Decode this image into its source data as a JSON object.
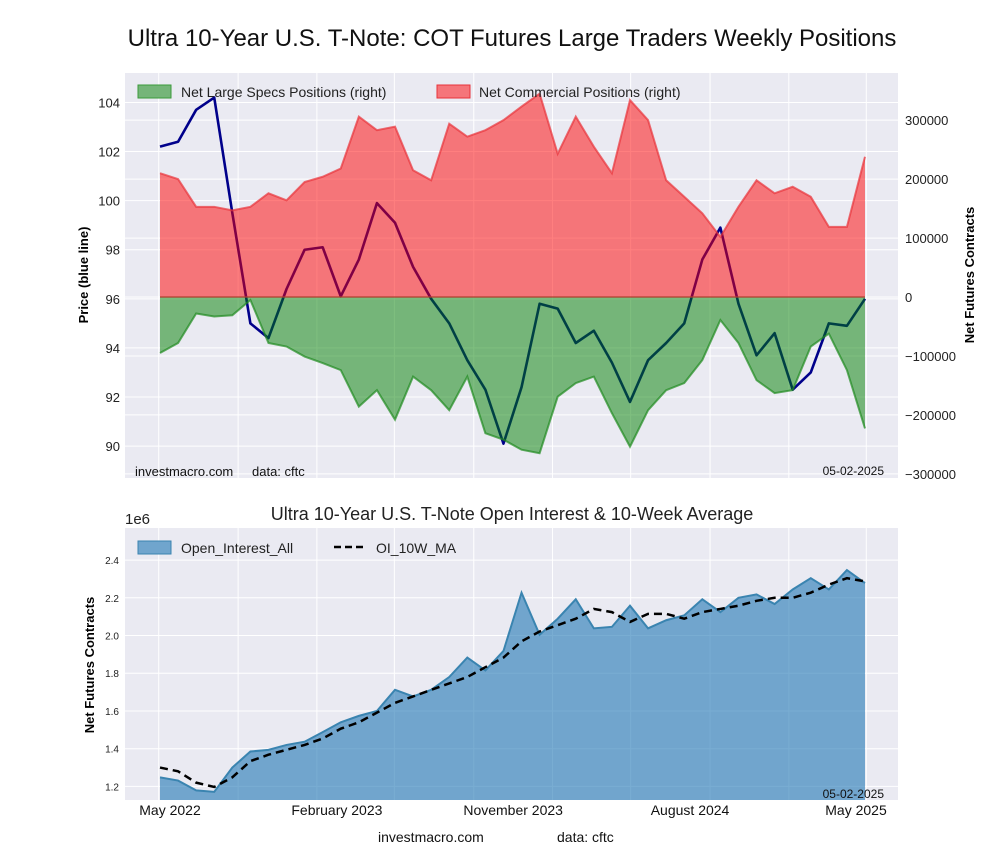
{
  "title": "Ultra 10-Year U.S. T-Note: COT Futures Large Traders Weekly Positions",
  "footer": {
    "site": "investmacro.com",
    "source": "data: cftc"
  },
  "chart_data": [
    {
      "type": "area+line",
      "title": "",
      "ylabel_left": "Price (blue line)",
      "ylabel_right": "Net Futures Contracts",
      "ylim_left": [
        88.7,
        105.2
      ],
      "ylim_right": [
        -307000,
        380000
      ],
      "yticks_left": [
        "104",
        "102",
        "100",
        "98",
        "96",
        "94",
        "92",
        "90"
      ],
      "yticks_right": [
        "300000",
        "200000",
        "100000",
        "0",
        "−100000",
        "−200000",
        "−300000"
      ],
      "grid": true,
      "legend_placement": "top-left",
      "watermark": "investmacro.com",
      "source_note": "data: cftc",
      "date_stamp": "05-02-2025",
      "x": [
        "2022-05-03",
        "2022-05-31",
        "2022-06-28",
        "2022-07-26",
        "2022-08-23",
        "2022-09-20",
        "2022-10-18",
        "2022-11-15",
        "2022-12-13",
        "2023-01-10",
        "2023-02-07",
        "2023-03-07",
        "2023-04-04",
        "2023-05-02",
        "2023-05-30",
        "2023-06-27",
        "2023-07-25",
        "2023-08-22",
        "2023-09-19",
        "2023-10-17",
        "2023-11-14",
        "2023-12-12",
        "2024-01-09",
        "2024-02-06",
        "2024-03-05",
        "2024-04-02",
        "2024-04-30",
        "2024-05-28",
        "2024-06-25",
        "2024-07-23",
        "2024-08-20",
        "2024-09-17",
        "2024-10-15",
        "2024-11-12",
        "2024-12-10",
        "2025-01-07",
        "2025-02-04",
        "2025-03-04",
        "2025-04-01",
        "2025-04-29"
      ],
      "series": [
        {
          "name": "Net Large Specs Positions (right)",
          "axis": "right",
          "kind": "area",
          "color": "#008000",
          "values": [
            -95000,
            -78000,
            -28000,
            -33000,
            -31000,
            -5000,
            -78000,
            -84000,
            -101000,
            -112000,
            -124000,
            -186000,
            -158000,
            -208000,
            -135000,
            -158000,
            -192000,
            -135000,
            -231000,
            -242000,
            -259000,
            -265000,
            -169000,
            -146000,
            -135000,
            -197000,
            -254000,
            -192000,
            -158000,
            -146000,
            -107000,
            -39000,
            -78000,
            -141000,
            -163000,
            -158000,
            -84000,
            -62000,
            -124000,
            -223000
          ]
        },
        {
          "name": "Net Commercial Positions (right)",
          "axis": "right",
          "kind": "area",
          "color": "#ff0000",
          "values": [
            210000,
            200000,
            153000,
            153000,
            147000,
            153000,
            176000,
            164000,
            195000,
            204000,
            218000,
            306000,
            283000,
            289000,
            215000,
            198000,
            294000,
            272000,
            283000,
            300000,
            323000,
            345000,
            243000,
            306000,
            255000,
            210000,
            334000,
            300000,
            198000,
            170000,
            142000,
            102000,
            153000,
            198000,
            176000,
            187000,
            170000,
            119000,
            119000,
            238000
          ]
        },
        {
          "axis": "left",
          "kind": "line",
          "color": "#00008b",
          "values": [
            102.2,
            102.4,
            103.7,
            104.2,
            99.5,
            95.0,
            94.4,
            96.4,
            98.0,
            98.1,
            96.1,
            97.6,
            99.9,
            99.1,
            97.3,
            96.0,
            95.0,
            93.5,
            92.3,
            90.1,
            92.4,
            95.8,
            95.6,
            94.2,
            94.7,
            93.4,
            91.8,
            93.5,
            94.2,
            95.0,
            97.6,
            98.9,
            95.8,
            93.7,
            94.6,
            92.3,
            93.0,
            95.0,
            94.9,
            96.0
          ]
        }
      ]
    },
    {
      "type": "area+line",
      "title": "Ultra 10-Year U.S. T-Note Open Interest & 10-Week Average",
      "ylabel": "Net Futures Contracts",
      "y_scale_note": "1e6",
      "ylim": [
        1.128,
        2.57
      ],
      "yticks": [
        "2.4",
        "2.2",
        "2.0",
        "1.8",
        "1.6",
        "1.4",
        "1.2"
      ],
      "xticks": [
        "May 2022",
        "February 2023",
        "November 2023",
        "August 2024",
        "May 2025"
      ],
      "xtick_dates": [
        "2022-05-01",
        "2023-02-01",
        "2023-11-01",
        "2024-08-01",
        "2025-05-01"
      ],
      "grid": true,
      "legend_placement": "top-left",
      "date_stamp": "05-02-2025",
      "x": [
        "2022-05-03",
        "2022-05-31",
        "2022-06-28",
        "2022-07-26",
        "2022-08-23",
        "2022-09-20",
        "2022-10-18",
        "2022-11-15",
        "2022-12-13",
        "2023-01-10",
        "2023-02-07",
        "2023-03-07",
        "2023-04-04",
        "2023-05-02",
        "2023-05-30",
        "2023-06-27",
        "2023-07-25",
        "2023-08-22",
        "2023-09-19",
        "2023-10-17",
        "2023-11-14",
        "2023-12-12",
        "2024-01-09",
        "2024-02-06",
        "2024-03-05",
        "2024-04-02",
        "2024-04-30",
        "2024-05-28",
        "2024-06-25",
        "2024-07-23",
        "2024-08-20",
        "2024-09-17",
        "2024-10-15",
        "2024-11-12",
        "2024-12-10",
        "2025-01-07",
        "2025-02-04",
        "2025-03-04",
        "2025-04-01",
        "2025-04-29"
      ],
      "series": [
        {
          "name": "Open_Interest_All",
          "kind": "area",
          "color": "#1f77b4",
          "values": [
            1.248,
            1.231,
            1.179,
            1.171,
            1.3,
            1.385,
            1.394,
            1.42,
            1.437,
            1.488,
            1.54,
            1.574,
            1.6,
            1.712,
            1.677,
            1.712,
            1.78,
            1.883,
            1.815,
            1.918,
            2.227,
            2.004,
            2.089,
            2.192,
            2.038,
            2.046,
            2.158,
            2.038,
            2.081,
            2.107,
            2.192,
            2.124,
            2.2,
            2.218,
            2.167,
            2.244,
            2.304,
            2.244,
            2.347,
            2.278
          ]
        },
        {
          "name": "OI_10W_MA",
          "kind": "dashed-line",
          "color": "#000000",
          "values": [
            1.3,
            1.28,
            1.22,
            1.197,
            1.248,
            1.334,
            1.368,
            1.394,
            1.42,
            1.454,
            1.506,
            1.54,
            1.591,
            1.643,
            1.677,
            1.712,
            1.746,
            1.78,
            1.832,
            1.883,
            1.969,
            2.021,
            2.055,
            2.089,
            2.141,
            2.124,
            2.072,
            2.115,
            2.115,
            2.089,
            2.124,
            2.141,
            2.158,
            2.184,
            2.2,
            2.2,
            2.227,
            2.27,
            2.304,
            2.287
          ]
        }
      ]
    }
  ]
}
